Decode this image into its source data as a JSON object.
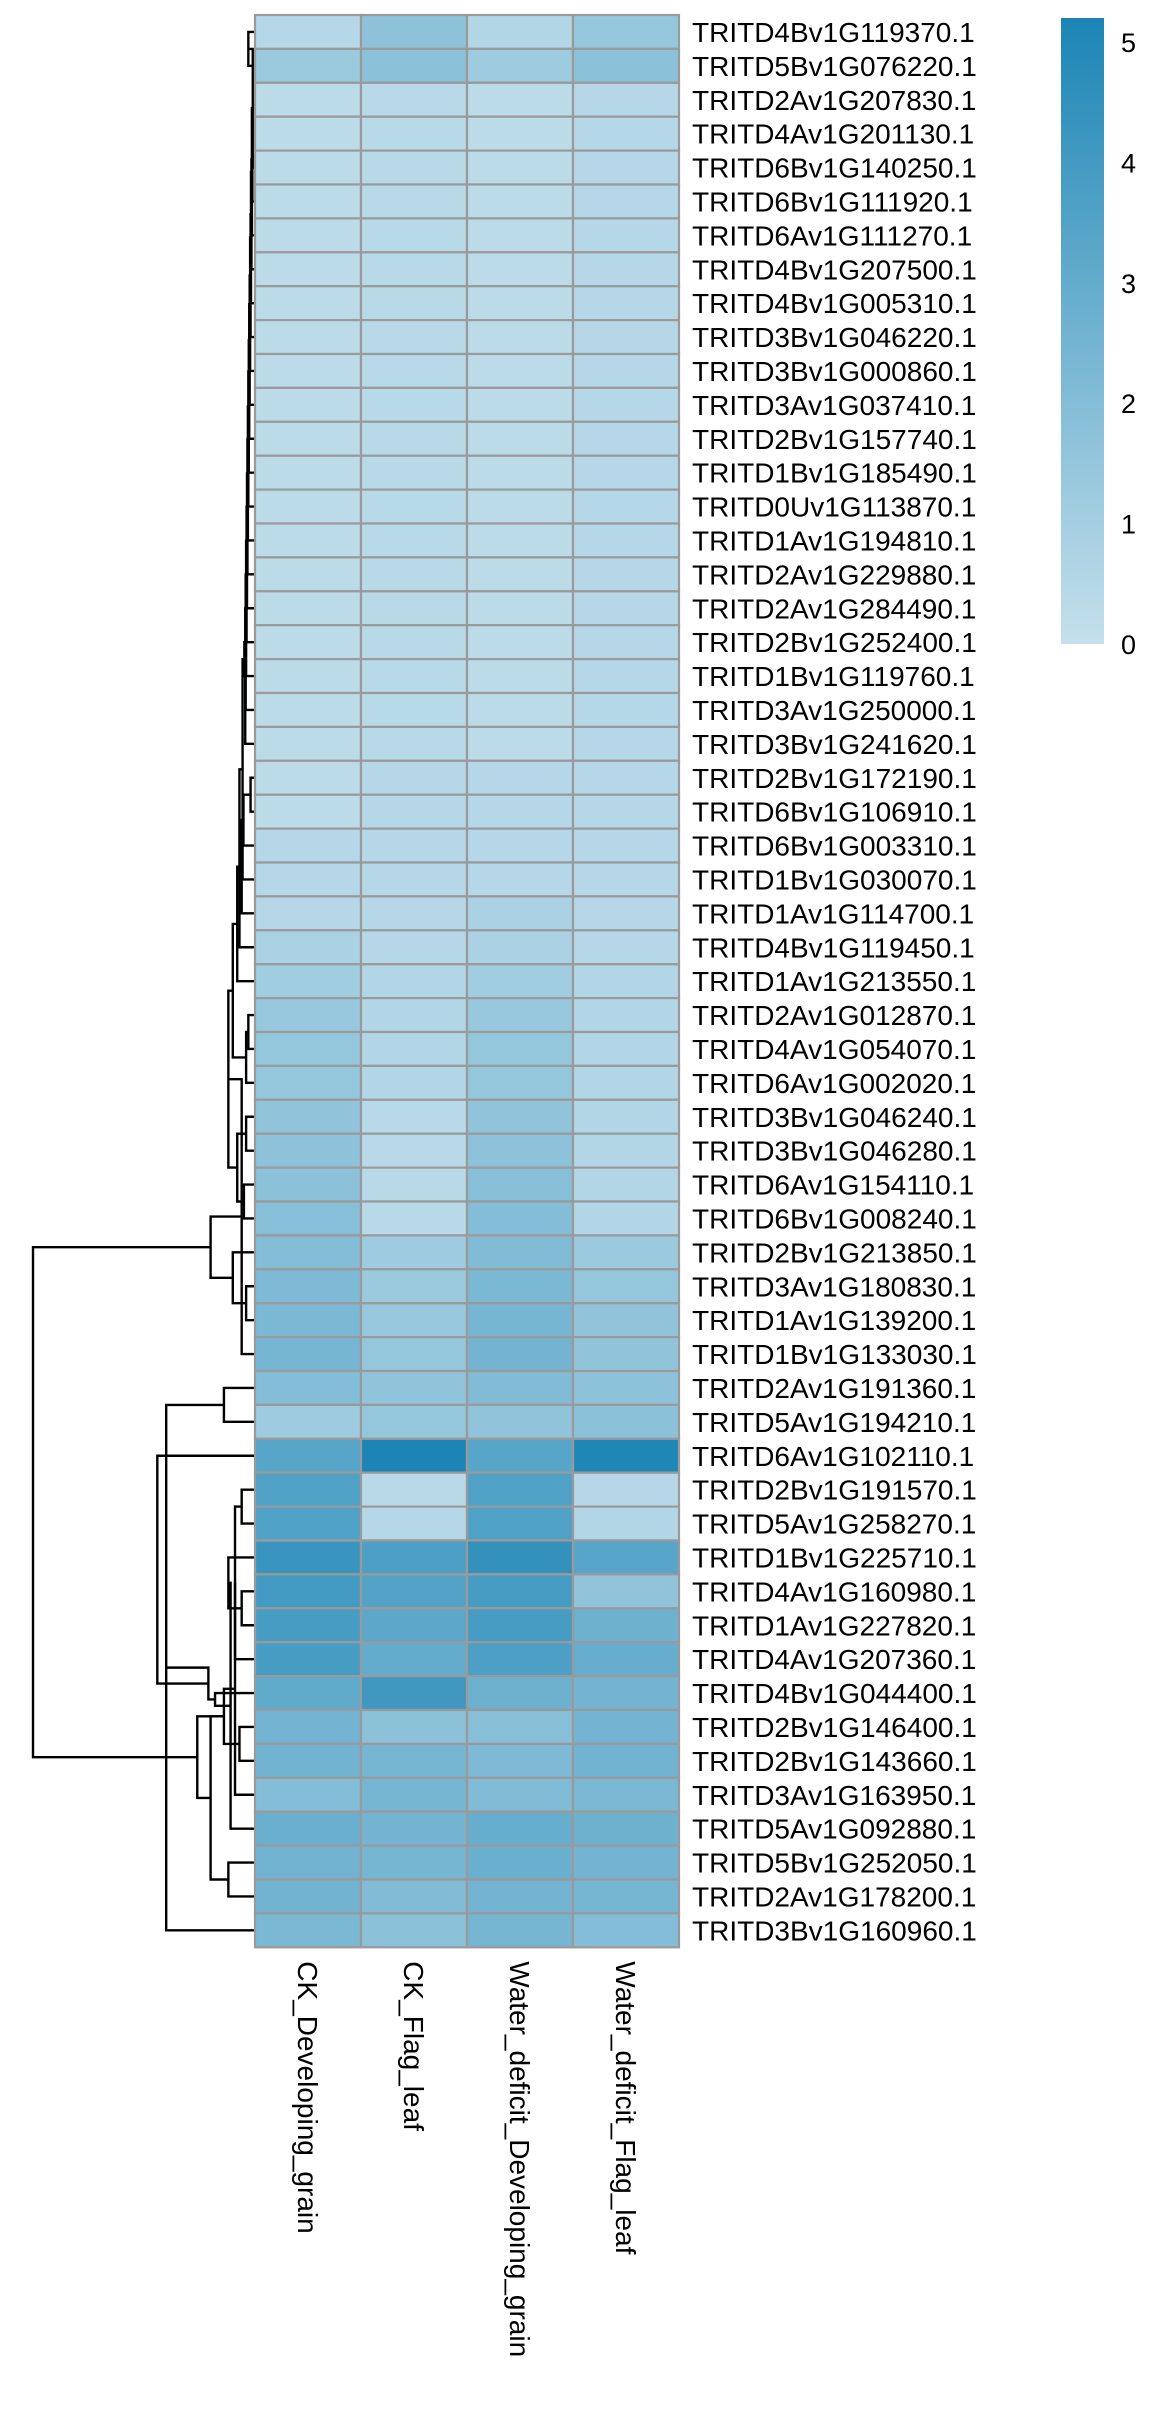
{
  "chart_data": {
    "type": "heatmap",
    "title": "",
    "xlabel": "",
    "ylabel": "",
    "columns": [
      "CK_Developing_grain",
      "CK_Flag_leaf",
      "Water_deficit_Developing_grain",
      "Water_deficit_Flag_leaf"
    ],
    "rows": [
      "TRITD4Bv1G119370.1",
      "TRITD5Bv1G076220.1",
      "TRITD2Av1G207830.1",
      "TRITD4Av1G201130.1",
      "TRITD6Bv1G140250.1",
      "TRITD6Bv1G111920.1",
      "TRITD6Av1G111270.1",
      "TRITD4Bv1G207500.1",
      "TRITD4Bv1G005310.1",
      "TRITD3Bv1G046220.1",
      "TRITD3Bv1G000860.1",
      "TRITD3Av1G037410.1",
      "TRITD2Bv1G157740.1",
      "TRITD1Bv1G185490.1",
      "TRITD0Uv1G113870.1",
      "TRITD1Av1G194810.1",
      "TRITD2Av1G229880.1",
      "TRITD2Av1G284490.1",
      "TRITD2Bv1G252400.1",
      "TRITD1Bv1G119760.1",
      "TRITD3Av1G250000.1",
      "TRITD3Bv1G241620.1",
      "TRITD2Bv1G172190.1",
      "TRITD6Bv1G106910.1",
      "TRITD6Bv1G003310.1",
      "TRITD1Bv1G030070.1",
      "TRITD1Av1G114700.1",
      "TRITD4Bv1G119450.1",
      "TRITD1Av1G213550.1",
      "TRITD2Av1G012870.1",
      "TRITD4Av1G054070.1",
      "TRITD6Av1G002020.1",
      "TRITD3Bv1G046240.1",
      "TRITD3Bv1G046280.1",
      "TRITD6Av1G154110.1",
      "TRITD6Bv1G008240.1",
      "TRITD2Bv1G213850.1",
      "TRITD3Av1G180830.1",
      "TRITD1Av1G139200.1",
      "TRITD1Bv1G133030.1",
      "TRITD2Av1G191360.1",
      "TRITD5Av1G194210.1",
      "TRITD6Av1G102110.1",
      "TRITD2Bv1G191570.1",
      "TRITD5Av1G258270.1",
      "TRITD1Bv1G225710.1",
      "TRITD4Av1G160980.1",
      "TRITD1Av1G227820.1",
      "TRITD4Av1G207360.1",
      "TRITD4Bv1G044400.1",
      "TRITD2Bv1G146400.1",
      "TRITD2Bv1G143660.1",
      "TRITD3Av1G163950.1",
      "TRITD5Av1G092880.1",
      "TRITD5Bv1G252050.1",
      "TRITD2Av1G178200.1",
      "TRITD3Bv1G160960.1"
    ],
    "values": [
      [
        0.5,
        1.7,
        0.6,
        1.5
      ],
      [
        1.3,
        1.8,
        1.2,
        1.8
      ],
      [
        0.3,
        0.4,
        0.3,
        0.5
      ],
      [
        0.3,
        0.4,
        0.3,
        0.5
      ],
      [
        0.3,
        0.4,
        0.3,
        0.5
      ],
      [
        0.3,
        0.4,
        0.3,
        0.5
      ],
      [
        0.3,
        0.4,
        0.3,
        0.5
      ],
      [
        0.3,
        0.4,
        0.3,
        0.5
      ],
      [
        0.3,
        0.4,
        0.3,
        0.5
      ],
      [
        0.3,
        0.4,
        0.3,
        0.5
      ],
      [
        0.3,
        0.4,
        0.3,
        0.5
      ],
      [
        0.3,
        0.4,
        0.3,
        0.5
      ],
      [
        0.3,
        0.4,
        0.3,
        0.5
      ],
      [
        0.3,
        0.4,
        0.3,
        0.5
      ],
      [
        0.3,
        0.4,
        0.3,
        0.5
      ],
      [
        0.3,
        0.4,
        0.3,
        0.5
      ],
      [
        0.3,
        0.4,
        0.3,
        0.5
      ],
      [
        0.3,
        0.4,
        0.3,
        0.5
      ],
      [
        0.3,
        0.4,
        0.3,
        0.5
      ],
      [
        0.3,
        0.4,
        0.3,
        0.5
      ],
      [
        0.3,
        0.4,
        0.3,
        0.5
      ],
      [
        0.3,
        0.4,
        0.3,
        0.5
      ],
      [
        0.3,
        0.5,
        0.5,
        0.5
      ],
      [
        0.3,
        0.5,
        0.5,
        0.5
      ],
      [
        0.5,
        0.5,
        0.5,
        0.5
      ],
      [
        0.5,
        0.5,
        0.5,
        0.5
      ],
      [
        0.5,
        0.5,
        0.8,
        0.5
      ],
      [
        0.8,
        0.5,
        0.8,
        0.5
      ],
      [
        1.1,
        0.6,
        1.1,
        0.6
      ],
      [
        1.4,
        0.6,
        1.4,
        0.6
      ],
      [
        1.5,
        0.6,
        1.5,
        0.6
      ],
      [
        1.5,
        0.6,
        1.5,
        0.6
      ],
      [
        1.6,
        0.4,
        1.6,
        0.6
      ],
      [
        1.7,
        0.4,
        1.7,
        0.6
      ],
      [
        1.8,
        0.4,
        1.9,
        0.6
      ],
      [
        1.9,
        0.4,
        2.0,
        0.6
      ],
      [
        2.0,
        1.2,
        2.1,
        1.3
      ],
      [
        2.2,
        1.3,
        2.3,
        1.5
      ],
      [
        2.3,
        1.4,
        2.4,
        1.6
      ],
      [
        2.4,
        1.5,
        2.5,
        1.6
      ],
      [
        2.0,
        1.6,
        2.1,
        1.7
      ],
      [
        1.2,
        1.5,
        1.6,
        1.8
      ],
      [
        3.4,
        5.2,
        3.4,
        5.1
      ],
      [
        3.6,
        0.4,
        3.6,
        0.5
      ],
      [
        3.6,
        0.5,
        3.6,
        0.6
      ],
      [
        4.3,
        3.7,
        4.5,
        3.4
      ],
      [
        4.0,
        3.5,
        3.9,
        1.6
      ],
      [
        3.9,
        3.2,
        3.9,
        2.7
      ],
      [
        3.9,
        3.0,
        3.7,
        2.9
      ],
      [
        3.1,
        4.1,
        2.7,
        2.5
      ],
      [
        2.5,
        1.8,
        1.9,
        2.5
      ],
      [
        2.6,
        2.4,
        2.2,
        2.6
      ],
      [
        2.0,
        2.4,
        2.1,
        2.3
      ],
      [
        2.8,
        2.5,
        2.9,
        2.7
      ],
      [
        2.6,
        2.4,
        2.8,
        2.5
      ],
      [
        2.6,
        2.1,
        2.5,
        2.4
      ],
      [
        2.3,
        1.8,
        2.4,
        2.0
      ]
    ],
    "colorscale": {
      "min": 0,
      "max": 5.2,
      "low": "#c5e0ec",
      "high": "#1c85b5"
    },
    "legend": {
      "placement": "right",
      "ticks": [
        "0",
        "1",
        "2",
        "3",
        "4",
        "5"
      ]
    },
    "row_dendrogram": [
      [
        0,
        1,
        0.15
      ],
      [
        2,
        3,
        0.03
      ],
      [
        57,
        4,
        0.05
      ],
      [
        58,
        5,
        0.06
      ],
      [
        59,
        6,
        0.07
      ],
      [
        60,
        7,
        0.08
      ],
      [
        61,
        8,
        0.09
      ],
      [
        62,
        9,
        0.1
      ],
      [
        63,
        10,
        0.11
      ],
      [
        64,
        11,
        0.12
      ],
      [
        65,
        12,
        0.13
      ],
      [
        66,
        13,
        0.14
      ],
      [
        67,
        14,
        0.15
      ],
      [
        68,
        15,
        0.16
      ],
      [
        69,
        16,
        0.17
      ],
      [
        70,
        17,
        0.18
      ],
      [
        71,
        18,
        0.19
      ],
      [
        72,
        19,
        0.2
      ],
      [
        73,
        20,
        0.21
      ],
      [
        74,
        21,
        0.22
      ],
      [
        22,
        23,
        0.1
      ],
      [
        75,
        76,
        0.24
      ],
      [
        77,
        24,
        0.26
      ],
      [
        78,
        25,
        0.28
      ],
      [
        79,
        26,
        0.3
      ],
      [
        80,
        27,
        0.35
      ],
      [
        29,
        30,
        0.15
      ],
      [
        83,
        31,
        0.2
      ],
      [
        81,
        28,
        0.4
      ],
      [
        85,
        84,
        0.5
      ],
      [
        32,
        33,
        0.2
      ],
      [
        34,
        35,
        0.25
      ],
      [
        87,
        88,
        0.4
      ],
      [
        86,
        89,
        0.6
      ],
      [
        37,
        38,
        0.2
      ],
      [
        90,
        39,
        0.3
      ],
      [
        36,
        91,
        0.5
      ],
      [
        40,
        41,
        0.7
      ],
      [
        92,
        93,
        1.0
      ],
      [
        56,
        94,
        2.0
      ],
      [
        43,
        44,
        0.3
      ],
      [
        46,
        47,
        0.3
      ],
      [
        97,
        48,
        0.45
      ],
      [
        45,
        98,
        0.6
      ],
      [
        50,
        51,
        0.35
      ],
      [
        99,
        52,
        0.45
      ],
      [
        100,
        53,
        0.55
      ],
      [
        54,
        55,
        0.6
      ],
      [
        102,
        101,
        0.7
      ],
      [
        49,
        103,
        0.9
      ],
      [
        104,
        105,
        1.0
      ],
      [
        96,
        106,
        1.05
      ],
      [
        105,
        107,
        1.3
      ],
      [
        42,
        108,
        2.2
      ],
      [
        95,
        109,
        5.0
      ]
    ]
  }
}
